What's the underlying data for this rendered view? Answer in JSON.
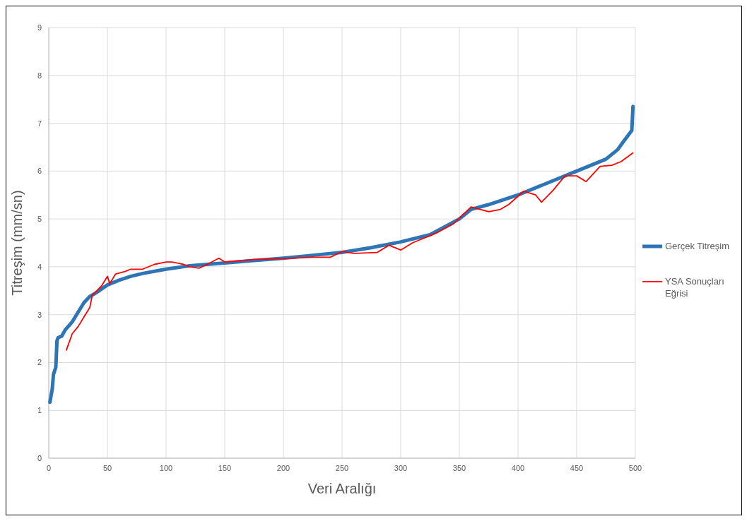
{
  "chart_data": {
    "type": "line",
    "xlabel": "Veri Aralığı",
    "ylabel": "Titreşim (mm/sn)",
    "xlim": [
      0,
      500
    ],
    "xticks": [
      0,
      50,
      100,
      150,
      200,
      250,
      300,
      350,
      400,
      450,
      500
    ],
    "ylim": [
      0,
      9
    ],
    "yticks": [
      0,
      1,
      2,
      3,
      4,
      5,
      6,
      7,
      8,
      9
    ],
    "grid": true,
    "legend": "right",
    "marker": "none",
    "series": [
      {
        "name": "Gerçek Titreşim",
        "color": "#2e75b6",
        "x": [
          1,
          3,
          4,
          6,
          7,
          8,
          11,
          14,
          20,
          25,
          30,
          35,
          40,
          50,
          60,
          70,
          80,
          100,
          120,
          150,
          175,
          200,
          225,
          250,
          275,
          300,
          325,
          350,
          360,
          375,
          400,
          425,
          450,
          475,
          485,
          490,
          497,
          498
        ],
        "values": [
          1.17,
          1.45,
          1.75,
          1.9,
          2.45,
          2.52,
          2.55,
          2.68,
          2.85,
          3.05,
          3.25,
          3.38,
          3.45,
          3.62,
          3.72,
          3.8,
          3.86,
          3.95,
          4.02,
          4.08,
          4.13,
          4.18,
          4.24,
          4.3,
          4.4,
          4.52,
          4.67,
          5.0,
          5.2,
          5.3,
          5.5,
          5.75,
          6.0,
          6.25,
          6.45,
          6.62,
          6.85,
          7.35
        ]
      },
      {
        "name": "YSA Sonuçları Eğrisi",
        "color": "#ff0000",
        "x": [
          15,
          20,
          25,
          30,
          35,
          37,
          45,
          50,
          52,
          57,
          65,
          70,
          80,
          90,
          100,
          105,
          115,
          120,
          128,
          135,
          145,
          150,
          160,
          175,
          200,
          225,
          240,
          250,
          260,
          280,
          290,
          300,
          310,
          330,
          345,
          360,
          375,
          385,
          392,
          405,
          415,
          420,
          430,
          440,
          450,
          458,
          470,
          480,
          488,
          498
        ],
        "values": [
          2.26,
          2.6,
          2.75,
          2.95,
          3.15,
          3.4,
          3.6,
          3.8,
          3.65,
          3.85,
          3.9,
          3.95,
          3.95,
          4.05,
          4.1,
          4.1,
          4.05,
          4.0,
          3.97,
          4.05,
          4.18,
          4.1,
          4.12,
          4.15,
          4.17,
          4.2,
          4.2,
          4.32,
          4.28,
          4.3,
          4.45,
          4.35,
          4.5,
          4.7,
          4.9,
          5.25,
          5.15,
          5.2,
          5.3,
          5.58,
          5.5,
          5.35,
          5.6,
          5.9,
          5.9,
          5.78,
          6.1,
          6.12,
          6.2,
          6.38
        ]
      }
    ]
  }
}
